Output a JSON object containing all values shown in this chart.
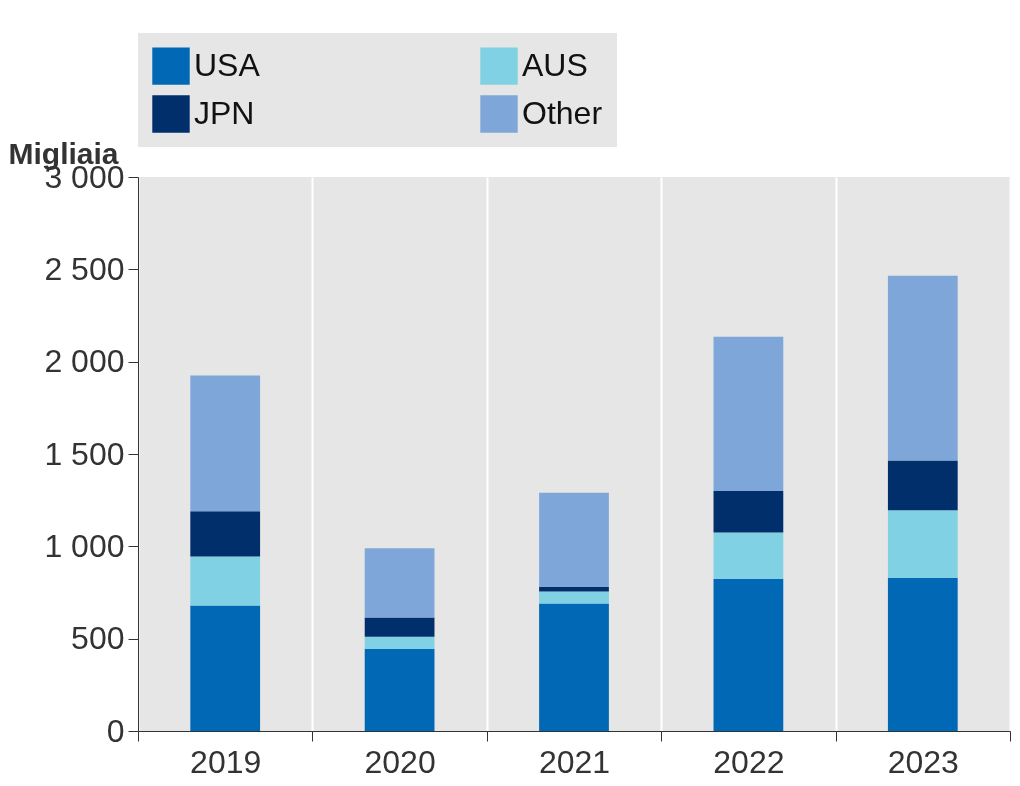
{
  "chart_data": {
    "type": "bar",
    "stacked": true,
    "ylabel": "Migliaia",
    "categories": [
      "2019",
      "2020",
      "2021",
      "2022",
      "2023"
    ],
    "series": [
      {
        "name": "USA",
        "color": "#0068b4",
        "values": [
          680,
          445,
          690,
          825,
          830
        ]
      },
      {
        "name": "AUS",
        "color": "#7fd1e3",
        "values": [
          265,
          65,
          65,
          250,
          365
        ]
      },
      {
        "name": "JPN",
        "color": "#002f6c",
        "values": [
          245,
          105,
          25,
          225,
          270
        ]
      },
      {
        "name": "Other",
        "color": "#7fa6d8",
        "values": [
          735,
          375,
          510,
          835,
          1000
        ]
      }
    ],
    "ylim": [
      0,
      3000
    ],
    "yticks": [
      0,
      500,
      {
        "value": 1000,
        "label": "1 000"
      },
      {
        "value": 1500,
        "label": "1 500"
      },
      {
        "value": 2000,
        "label": "2 000"
      },
      {
        "value": 2500,
        "label": "2 500"
      },
      {
        "value": 3000,
        "label": "3 000"
      }
    ],
    "grid": "x",
    "legend": "top"
  }
}
